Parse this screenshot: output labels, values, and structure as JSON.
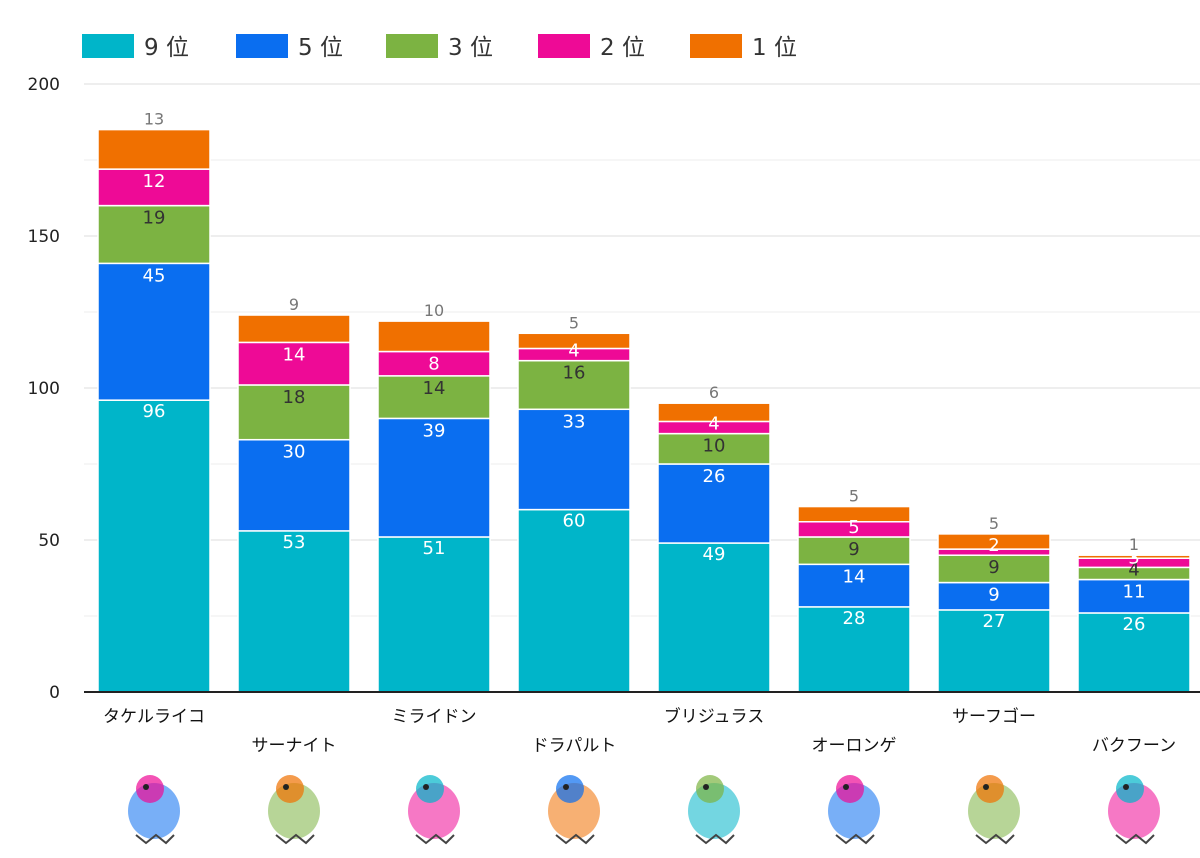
{
  "chart_data": {
    "type": "bar",
    "stacked": true,
    "categories": [
      "タケルライコ",
      "サーナイト",
      "ミライドン",
      "ドラパルト",
      "ブリジュラス",
      "オーロンゲ",
      "サーフゴー",
      "バクフーン"
    ],
    "series": [
      {
        "name": "9 位",
        "color": "#00b5c9",
        "values": [
          96,
          53,
          51,
          60,
          49,
          28,
          27,
          26
        ]
      },
      {
        "name": "5 位",
        "color": "#0a6ef0",
        "values": [
          45,
          30,
          39,
          33,
          26,
          14,
          9,
          11
        ]
      },
      {
        "name": "3 位",
        "color": "#7cb342",
        "values": [
          19,
          18,
          14,
          16,
          10,
          9,
          9,
          4
        ]
      },
      {
        "name": "2 位",
        "color": "#ee0a96",
        "values": [
          12,
          14,
          8,
          4,
          4,
          5,
          2,
          3
        ]
      },
      {
        "name": "1 位",
        "color": "#f07000",
        "values": [
          13,
          9,
          10,
          5,
          6,
          5,
          5,
          1
        ]
      }
    ],
    "data_labels": [
      [
        "96",
        "53",
        "51",
        "60",
        "49",
        "28",
        "27",
        "26"
      ],
      [
        "45",
        "30",
        "39",
        "33",
        "26",
        "14",
        "9",
        "11"
      ],
      [
        "19",
        "18",
        "14",
        "16",
        "10",
        "9",
        "9",
        "4"
      ],
      [
        "12",
        "14",
        "8",
        "4",
        "4",
        "5",
        "2",
        "3"
      ],
      [
        "13",
        "9",
        "10",
        "5",
        "6",
        "5",
        "5",
        "1"
      ]
    ],
    "data_label_colors": [
      "#ffffff",
      "#ffffff",
      "#333333",
      "#ffffff",
      "#333333"
    ],
    "top_label_color": "#777777",
    "ylim": [
      0,
      200
    ],
    "yticks": [
      0,
      50,
      100,
      150,
      200
    ],
    "grid": true,
    "legend_position": "top-left",
    "icons": [
      "raging-bolt-sprite-icon",
      "gardevoir-sprite-icon",
      "miraidon-sprite-icon",
      "dragapult-sprite-icon",
      "archaludon-sprite-icon",
      "grimmsnarl-sprite-icon",
      "gholdengo-sprite-icon",
      "typhlosion-sprite-icon"
    ]
  }
}
